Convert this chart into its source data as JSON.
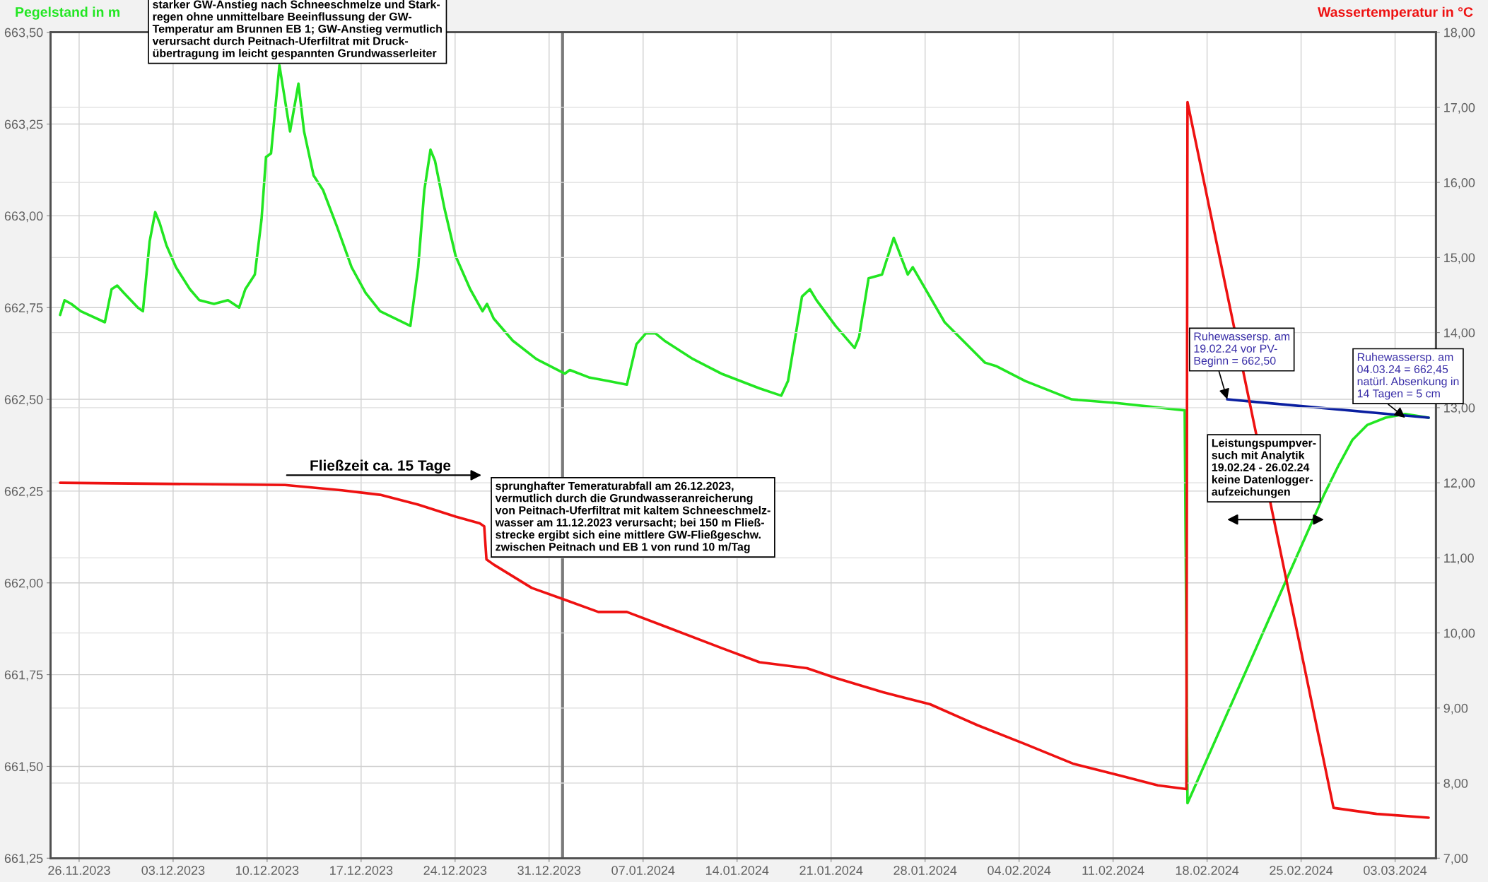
{
  "chart_data": {
    "type": "line",
    "ylabel": "Pegelstand in m",
    "y2label": "Wassertemperatur in °C",
    "xlim": [
      "2023-11-23T21:00",
      "2024-03-06T01:00"
    ],
    "xticks": [
      {
        "value": "2023-11-26",
        "label": "26.11.2023"
      },
      {
        "value": "2023-12-03",
        "label": "03.12.2023"
      },
      {
        "value": "2023-12-10",
        "label": "10.12.2023"
      },
      {
        "value": "2023-12-17",
        "label": "17.12.2023"
      },
      {
        "value": "2023-12-24",
        "label": "24.12.2023"
      },
      {
        "value": "2023-12-31",
        "label": "31.12.2023"
      },
      {
        "value": "2024-01-07",
        "label": "07.01.2024"
      },
      {
        "value": "2024-01-14",
        "label": "14.01.2024"
      },
      {
        "value": "2024-01-21",
        "label": "21.01.2024"
      },
      {
        "value": "2024-01-28",
        "label": "28.01.2024"
      },
      {
        "value": "2024-02-04",
        "label": "04.02.2024"
      },
      {
        "value": "2024-02-11",
        "label": "11.02.2024"
      },
      {
        "value": "2024-02-18",
        "label": "18.02.2024"
      },
      {
        "value": "2024-02-25",
        "label": "25.02.2024"
      },
      {
        "value": "2024-03-03",
        "label": "03.03.2024"
      }
    ],
    "ylim": [
      661.25,
      663.5
    ],
    "yticks": [
      {
        "value": 661.25,
        "label": "661,25"
      },
      {
        "value": 661.5,
        "label": "661,50"
      },
      {
        "value": 661.75,
        "label": "661,75"
      },
      {
        "value": 662.0,
        "label": "662,00"
      },
      {
        "value": 662.25,
        "label": "662,25"
      },
      {
        "value": 662.5,
        "label": "662,50"
      },
      {
        "value": 662.75,
        "label": "662,75"
      },
      {
        "value": 663.0,
        "label": "663,00"
      },
      {
        "value": 663.25,
        "label": "663,25"
      },
      {
        "value": 663.5,
        "label": "663,50"
      }
    ],
    "y2lim": [
      7,
      18
    ],
    "y2ticks": [
      {
        "value": 7,
        "label": "7,00"
      },
      {
        "value": 8,
        "label": "8,00"
      },
      {
        "value": 9,
        "label": "9,00"
      },
      {
        "value": 10,
        "label": "10,00"
      },
      {
        "value": 11,
        "label": "11,00"
      },
      {
        "value": 12,
        "label": "12,00"
      },
      {
        "value": 13,
        "label": "13,00"
      },
      {
        "value": 14,
        "label": "14,00"
      },
      {
        "value": 15,
        "label": "15,00"
      },
      {
        "value": 16,
        "label": "16,00"
      },
      {
        "value": 17,
        "label": "17,00"
      },
      {
        "value": 18,
        "label": "18,00"
      }
    ],
    "grid": true,
    "marker": "none",
    "line_style": "solid",
    "ref_lines": [
      {
        "axis": "x",
        "value": "2024-01-01",
        "color": "#7a7a7a"
      }
    ],
    "series": [
      {
        "color": "#22e622",
        "axis": "y",
        "x": [
          "2023-11-24T14:00",
          "2023-11-24T22:00",
          "2023-11-25T10:00",
          "2023-11-26T03:00",
          "2023-11-27T22:00",
          "2023-11-28T10:00",
          "2023-11-28T20:00",
          "2023-11-29T08:00",
          "2023-11-30T09:00",
          "2023-11-30T18:00",
          "2023-12-01T06:00",
          "2023-12-01T16:00",
          "2023-12-02T00:00",
          "2023-12-02T12:00",
          "2023-12-03T05:00",
          "2023-12-04T06:00",
          "2023-12-04T23:00",
          "2023-12-06T01:00",
          "2023-12-07T02:00",
          "2023-12-07T22:00",
          "2023-12-08T09:00",
          "2023-12-09T02:00",
          "2023-12-09T14:00",
          "2023-12-09T22:00",
          "2023-12-10T07:00",
          "2023-12-10T12:00",
          "2023-12-10T22:00",
          "2023-12-11T17:00",
          "2023-12-12T08:00",
          "2023-12-12T18:00",
          "2023-12-13T11:00",
          "2023-12-14T04:00",
          "2023-12-15T05:00",
          "2023-12-16T07:00",
          "2023-12-17T08:00",
          "2023-12-18T10:00",
          "2023-12-20T16:00",
          "2023-12-21T06:00",
          "2023-12-21T17:00",
          "2023-12-22T04:00",
          "2023-12-22T12:00",
          "2023-12-23T05:00",
          "2023-12-24T01:00",
          "2023-12-25T03:00",
          "2023-12-26T01:00",
          "2023-12-26T09:00",
          "2023-12-26T21:00",
          "2023-12-28T07:00",
          "2023-12-30T01:00",
          "2024-01-01T04:00",
          "2024-01-01T13:00",
          "2024-01-02T23:00",
          "2024-01-04T09:00",
          "2024-01-05T19:00",
          "2024-01-06T12:00",
          "2024-01-07T05:00",
          "2024-01-07T22:00",
          "2024-01-08T14:00",
          "2024-01-10T17:00",
          "2024-01-12T20:00",
          "2024-01-15T16:00",
          "2024-01-17T07:00",
          "2024-01-17T19:00",
          "2024-01-18T20:00",
          "2024-01-19T10:00",
          "2024-01-19T22:00",
          "2024-01-21T08:00",
          "2024-01-22T18:00",
          "2024-01-23T02:00",
          "2024-01-23T19:00",
          "2024-01-24T19:00",
          "2024-01-25T16:00",
          "2024-01-26T17:00",
          "2024-01-27T02:00",
          "2024-01-29T11:00",
          "2024-02-01T11:00",
          "2024-02-02T08:00",
          "2024-02-04T11:00",
          "2024-02-07T22:00",
          "2024-02-11T06:00",
          "2024-02-16T08:00",
          "2024-02-16T13:00",
          "2024-02-26T17:00",
          "2024-02-27T19:00",
          "2024-02-28T20:00",
          "2024-02-29T22:00",
          "2024-03-02T07:00",
          "2024-03-03T18:00",
          "2024-03-05T12:00"
        ],
        "values": [
          662.73,
          662.77,
          662.76,
          662.74,
          662.71,
          662.8,
          662.81,
          662.79,
          662.75,
          662.74,
          662.93,
          663.01,
          662.98,
          662.92,
          662.86,
          662.8,
          662.77,
          662.76,
          662.77,
          662.75,
          662.8,
          662.84,
          662.99,
          663.16,
          663.17,
          663.25,
          663.41,
          663.23,
          663.36,
          663.23,
          663.11,
          663.07,
          662.97,
          662.86,
          662.79,
          662.74,
          662.7,
          662.86,
          663.07,
          663.18,
          663.15,
          663.02,
          662.89,
          662.8,
          662.74,
          662.76,
          662.72,
          662.66,
          662.61,
          662.57,
          662.58,
          662.56,
          662.55,
          662.54,
          662.65,
          662.68,
          662.68,
          662.66,
          662.61,
          662.57,
          662.53,
          662.51,
          662.55,
          662.78,
          662.8,
          662.77,
          662.7,
          662.64,
          662.67,
          662.83,
          662.84,
          662.94,
          662.84,
          662.86,
          662.71,
          662.6,
          662.59,
          662.55,
          662.5,
          662.49,
          662.47,
          661.4,
          662.24,
          662.32,
          662.39,
          662.43,
          662.45,
          662.46,
          662.45
        ]
      },
      {
        "color": "#ee1111",
        "axis": "y2",
        "x": [
          "2023-11-24T14:00",
          "2023-12-11T08:00",
          "2023-12-15T14:00",
          "2023-12-18T10:00",
          "2023-12-21T06:00",
          "2023-12-24T01:00",
          "2023-12-25T20:00",
          "2023-12-26T04:00",
          "2023-12-26T08:00",
          "2023-12-26T21:00",
          "2023-12-29T17:00",
          "2024-01-01T01:00",
          "2024-01-03T16:00",
          "2024-01-05T19:00",
          "2024-01-08T14:00",
          "2024-01-12T20:00",
          "2024-01-15T16:00",
          "2024-01-19T05:00",
          "2024-01-21T08:00",
          "2024-01-24T21:00",
          "2024-01-28T09:00",
          "2024-01-31T22:00",
          "2024-02-04T11:00",
          "2024-02-08T00:00",
          "2024-02-11T13:00",
          "2024-02-14T08:00",
          "2024-02-16T11:00",
          "2024-02-16T13:00",
          "2024-02-27T10:00",
          "2024-03-01T15:00",
          "2024-03-05T12:00"
        ],
        "values": [
          12.0,
          11.97,
          11.9,
          11.84,
          11.71,
          11.55,
          11.46,
          11.42,
          10.98,
          10.91,
          10.6,
          10.45,
          10.28,
          10.28,
          10.09,
          9.8,
          9.61,
          9.53,
          9.4,
          9.21,
          9.05,
          8.77,
          8.52,
          8.26,
          8.1,
          7.97,
          7.92,
          17.07,
          7.67,
          7.59,
          7.54
        ]
      },
      {
        "color": "#0a1fa0",
        "axis": "y",
        "x": [
          "2024-02-19T12:00",
          "2024-03-05T12:00"
        ],
        "values": [
          662.5,
          662.45
        ]
      }
    ],
    "annotations": [
      "starker GW-Anstieg nach Schneeschmelze und Stark-\nregen ohne unmittelbare Beeinflussung der GW-\nTemperatur am Brunnen EB 1; GW-Anstieg vermutlich\nverursacht durch Peitnach-Uferfiltrat mit Druck-\nübertragung im leicht gespannten Grundwasserleiter",
      "Fließzeit ca. 15 Tage",
      "sprunghafter Temeraturabfall am 26.12.2023,\nvermutlich durch die Grundwasseranreicherung\nvon Peitnach-Uferfiltrat mit kaltem Schneeschmelz-\nwasser am 11.12.2023 verursacht; bei 150 m Fließ-\nstrecke ergibt sich eine mittlere GW-Fließgeschw.\nzwischen Peitnach und EB 1 von rund 10 m/Tag",
      {
        "text": "Ruhewassersp. am\n19.02.24 vor PV-\nBeginn = 662,50",
        "x": "2024-02-19T12:00",
        "y": 662.5
      },
      {
        "text": "Ruhewassersp. am\n04.03.24 = 662,45\nnatürl. Absenkung in\n14 Tagen = 5 cm",
        "x": "2024-03-03T18:00",
        "y": 662.45
      },
      "Leistungspumpver-\nsuch mit Analytik\n19.02.24 - 26.02.24\nkeine Datenlogger-\naufzeichungen"
    ]
  }
}
